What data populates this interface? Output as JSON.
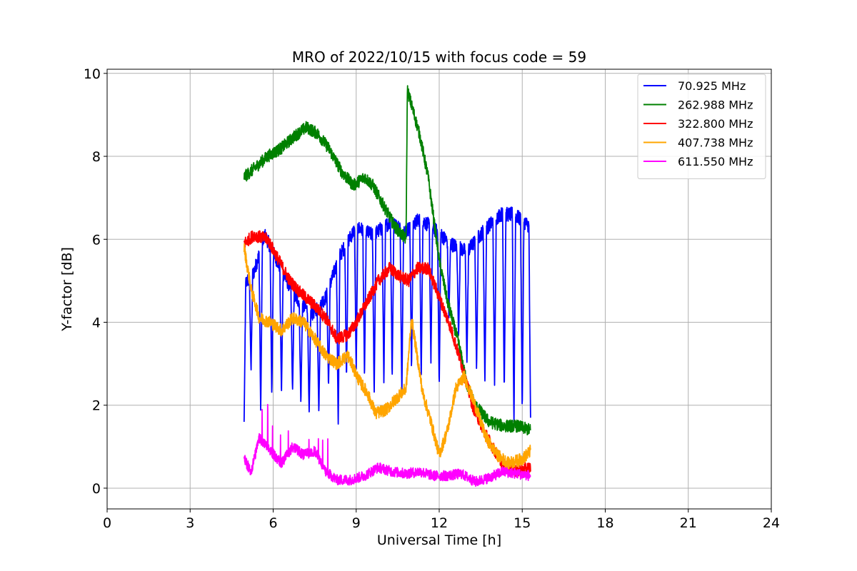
{
  "chart_data": {
    "type": "line",
    "title": "MRO of 2022/10/15 with focus code = 59",
    "xlabel": "Universal Time [h]",
    "ylabel": "Y-factor [dB]",
    "xlim": [
      0,
      24
    ],
    "ylim": [
      -0.5,
      10.1
    ],
    "xticks": [
      0,
      3,
      6,
      9,
      12,
      15,
      18,
      21,
      24
    ],
    "yticks": [
      0,
      2,
      4,
      6,
      8,
      10
    ],
    "grid": true,
    "legend_position": "top-right",
    "series": [
      {
        "name": " 70.925 MHz",
        "color": "#0000ff",
        "style": "switching",
        "high": [
          [
            4.95,
            4.9
          ],
          [
            5.3,
            5.2
          ],
          [
            5.7,
            6.1
          ],
          [
            6.2,
            5.4
          ],
          [
            6.8,
            4.6
          ],
          [
            7.4,
            4.2
          ],
          [
            7.9,
            4.6
          ],
          [
            8.4,
            5.6
          ],
          [
            9.0,
            6.3
          ],
          [
            9.6,
            6.1
          ],
          [
            10.2,
            6.4
          ],
          [
            10.8,
            6.2
          ],
          [
            11.3,
            6.5
          ],
          [
            11.9,
            6.2
          ],
          [
            12.4,
            5.9
          ],
          [
            13.0,
            5.7
          ],
          [
            13.6,
            6.2
          ],
          [
            14.2,
            6.6
          ],
          [
            14.7,
            6.6
          ],
          [
            15.3,
            6.3
          ]
        ],
        "dips": [
          [
            4.95,
            1.6
          ],
          [
            5.2,
            2.8
          ],
          [
            5.55,
            1.8
          ],
          [
            5.95,
            2.2
          ],
          [
            6.3,
            2.2
          ],
          [
            6.7,
            2.3
          ],
          [
            7.0,
            2.0
          ],
          [
            7.3,
            1.8
          ],
          [
            7.65,
            1.8
          ],
          [
            8.0,
            2.4
          ],
          [
            8.35,
            1.5
          ],
          [
            8.65,
            2.6
          ],
          [
            9.0,
            2.8
          ],
          [
            9.3,
            2.6
          ],
          [
            9.65,
            2.2
          ],
          [
            10.0,
            2.5
          ],
          [
            10.3,
            2.6
          ],
          [
            10.65,
            2.2
          ],
          [
            11.0,
            2.8
          ],
          [
            11.35,
            2.6
          ],
          [
            11.7,
            3.0
          ],
          [
            12.0,
            2.4
          ],
          [
            12.35,
            4.1
          ],
          [
            12.7,
            3.6
          ],
          [
            13.0,
            3.0
          ],
          [
            13.35,
            2.8
          ],
          [
            13.65,
            2.5
          ],
          [
            14.0,
            2.4
          ],
          [
            14.35,
            2.3
          ],
          [
            14.7,
            1.5
          ],
          [
            15.0,
            1.8
          ],
          [
            15.3,
            1.7
          ]
        ]
      },
      {
        "name": "262.988 MHz",
        "color": "#008000",
        "style": "noisy",
        "points": [
          [
            4.95,
            7.5
          ],
          [
            5.3,
            7.7
          ],
          [
            5.8,
            8.0
          ],
          [
            6.3,
            8.2
          ],
          [
            6.8,
            8.5
          ],
          [
            7.2,
            8.7
          ],
          [
            7.6,
            8.55
          ],
          [
            8.0,
            8.2
          ],
          [
            8.5,
            7.6
          ],
          [
            8.9,
            7.3
          ],
          [
            9.3,
            7.5
          ],
          [
            9.6,
            7.3
          ],
          [
            10.0,
            6.8
          ],
          [
            10.4,
            6.3
          ],
          [
            10.8,
            6.0
          ],
          [
            10.85,
            9.6
          ],
          [
            11.3,
            8.5
          ],
          [
            11.6,
            7.5
          ],
          [
            12.0,
            5.5
          ],
          [
            12.3,
            4.5
          ],
          [
            12.7,
            3.5
          ],
          [
            13.0,
            2.5
          ],
          [
            13.3,
            2.0
          ],
          [
            13.8,
            1.6
          ],
          [
            14.3,
            1.5
          ],
          [
            14.8,
            1.5
          ],
          [
            15.3,
            1.4
          ]
        ]
      },
      {
        "name": "322.800 MHz",
        "color": "#ff0000",
        "style": "noisy",
        "points": [
          [
            4.95,
            5.9
          ],
          [
            5.3,
            6.1
          ],
          [
            5.8,
            6.0
          ],
          [
            6.2,
            5.5
          ],
          [
            6.6,
            5.0
          ],
          [
            7.0,
            4.7
          ],
          [
            7.5,
            4.4
          ],
          [
            7.9,
            4.1
          ],
          [
            8.3,
            3.6
          ],
          [
            8.7,
            3.7
          ],
          [
            9.0,
            4.0
          ],
          [
            9.4,
            4.5
          ],
          [
            9.8,
            5.0
          ],
          [
            10.2,
            5.3
          ],
          [
            10.6,
            5.1
          ],
          [
            10.9,
            5.0
          ],
          [
            11.2,
            5.3
          ],
          [
            11.6,
            5.3
          ],
          [
            12.0,
            4.6
          ],
          [
            12.4,
            3.9
          ],
          [
            12.8,
            3.0
          ],
          [
            13.2,
            2.0
          ],
          [
            13.6,
            1.4
          ],
          [
            14.0,
            0.9
          ],
          [
            14.4,
            0.5
          ],
          [
            14.8,
            0.4
          ],
          [
            15.3,
            0.5
          ]
        ]
      },
      {
        "name": "407.738 MHz",
        "color": "#ffa500",
        "style": "noisy",
        "points": [
          [
            4.95,
            5.8
          ],
          [
            5.2,
            4.8
          ],
          [
            5.5,
            4.1
          ],
          [
            5.9,
            4.0
          ],
          [
            6.3,
            3.8
          ],
          [
            6.7,
            4.1
          ],
          [
            7.1,
            4.0
          ],
          [
            7.5,
            3.6
          ],
          [
            7.9,
            3.2
          ],
          [
            8.3,
            3.0
          ],
          [
            8.7,
            3.2
          ],
          [
            9.1,
            2.6
          ],
          [
            9.4,
            2.3
          ],
          [
            9.7,
            1.8
          ],
          [
            10.1,
            1.9
          ],
          [
            10.5,
            2.2
          ],
          [
            10.8,
            2.4
          ],
          [
            11.0,
            4.1
          ],
          [
            11.4,
            2.3
          ],
          [
            11.7,
            1.6
          ],
          [
            12.0,
            0.8
          ],
          [
            12.3,
            1.4
          ],
          [
            12.6,
            2.4
          ],
          [
            12.9,
            2.7
          ],
          [
            13.3,
            2.0
          ],
          [
            13.7,
            1.2
          ],
          [
            14.1,
            0.8
          ],
          [
            14.5,
            0.6
          ],
          [
            15.0,
            0.7
          ],
          [
            15.3,
            0.9
          ]
        ]
      },
      {
        "name": "611.550 MHz",
        "color": "#ff00ff",
        "style": "spiky",
        "points": [
          [
            4.95,
            0.7
          ],
          [
            5.2,
            0.4
          ],
          [
            5.5,
            1.2
          ],
          [
            5.9,
            0.9
          ],
          [
            6.3,
            0.6
          ],
          [
            6.7,
            1.0
          ],
          [
            7.1,
            0.8
          ],
          [
            7.5,
            0.9
          ],
          [
            7.9,
            0.4
          ],
          [
            8.3,
            0.2
          ],
          [
            8.8,
            0.2
          ],
          [
            9.3,
            0.3
          ],
          [
            9.8,
            0.5
          ],
          [
            10.3,
            0.4
          ],
          [
            10.8,
            0.35
          ],
          [
            11.3,
            0.4
          ],
          [
            11.8,
            0.3
          ],
          [
            12.3,
            0.3
          ],
          [
            12.8,
            0.35
          ],
          [
            13.3,
            0.15
          ],
          [
            13.8,
            0.25
          ],
          [
            14.3,
            0.4
          ],
          [
            14.8,
            0.35
          ],
          [
            15.3,
            0.3
          ]
        ]
      }
    ]
  }
}
